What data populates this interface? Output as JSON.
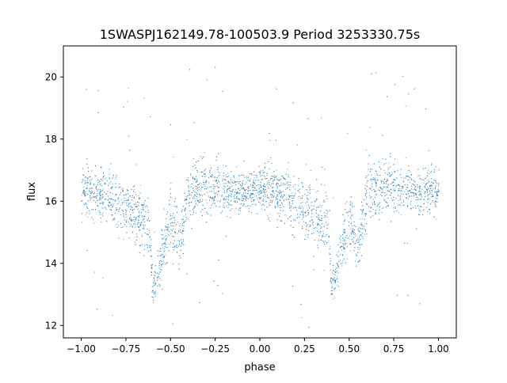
{
  "chart_data": {
    "type": "scatter",
    "title": "1SWASPJ162149.78-100503.9 Period 3253330.75s",
    "xlabel": "phase",
    "ylabel": "flux",
    "xlim": [
      -1.1,
      1.1
    ],
    "ylim": [
      11.6,
      21.0
    ],
    "xticks": [
      -1.0,
      -0.75,
      -0.5,
      -0.25,
      0.0,
      0.25,
      0.5,
      0.75,
      1.0
    ],
    "xtick_labels": [
      "−1.00",
      "−0.75",
      "−0.50",
      "−0.25",
      "0.00",
      "0.25",
      "0.50",
      "0.75",
      "1.00"
    ],
    "yticks": [
      12,
      14,
      16,
      18,
      20
    ],
    "ytick_labels": [
      "12",
      "14",
      "16",
      "18",
      "20"
    ],
    "grid": false,
    "marker_color": "#1f77b4",
    "series": [
      {
        "name": "",
        "description_points": "dense phase-folded light curve, mirrored over phase -1..1",
        "x": [
          -0.98,
          -0.9,
          -0.8,
          -0.7,
          -0.62,
          -0.6,
          -0.5,
          -0.45,
          -0.4,
          -0.3,
          -0.2,
          -0.1,
          0.0,
          0.1,
          0.2,
          0.3,
          0.38,
          0.4,
          0.5,
          0.55,
          0.6,
          0.7,
          0.8,
          0.9,
          1.0
        ],
        "y": [
          16.4,
          16.3,
          16.0,
          15.6,
          15.2,
          13.1,
          15.5,
          14.6,
          16.3,
          16.5,
          16.4,
          16.3,
          16.4,
          16.3,
          16.0,
          15.6,
          15.2,
          13.1,
          15.5,
          14.6,
          16.3,
          16.5,
          16.4,
          16.3,
          16.4
        ],
        "spread": [
          0.7,
          0.8,
          0.8,
          0.9,
          0.9,
          0.5,
          0.9,
          0.8,
          0.9,
          0.8,
          0.7,
          0.6,
          0.6,
          0.8,
          0.8,
          0.9,
          0.9,
          0.5,
          0.9,
          0.8,
          0.9,
          0.8,
          0.7,
          0.6,
          0.7
        ]
      }
    ]
  }
}
